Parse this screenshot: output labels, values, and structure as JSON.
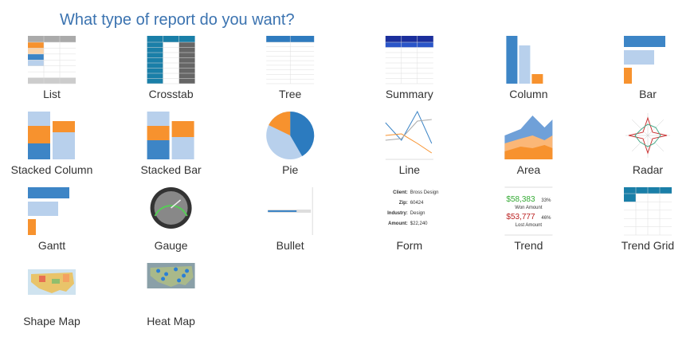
{
  "title": "What type of report do you want?",
  "items": [
    {
      "label": "List"
    },
    {
      "label": "Crosstab"
    },
    {
      "label": "Tree"
    },
    {
      "label": "Summary"
    },
    {
      "label": "Column"
    },
    {
      "label": "Bar"
    },
    {
      "label": "Stacked Column"
    },
    {
      "label": "Stacked Bar"
    },
    {
      "label": "Pie"
    },
    {
      "label": "Line"
    },
    {
      "label": "Area"
    },
    {
      "label": "Radar"
    },
    {
      "label": "Gantt"
    },
    {
      "label": "Gauge"
    },
    {
      "label": "Bullet"
    },
    {
      "label": "Form",
      "fields": [
        {
          "label": "Client:",
          "value": "Bross Design"
        },
        {
          "label": "Zip:",
          "value": "60424"
        },
        {
          "label": "Industry:",
          "value": "Design"
        },
        {
          "label": "Amount:",
          "value": "$22,240"
        }
      ]
    },
    {
      "label": "Trend",
      "won": "$58,383",
      "won_pct": "33%",
      "won_label": "Won Amount",
      "lost": "$53,777",
      "lost_pct": "46%",
      "lost_label": "Lost Amount"
    },
    {
      "label": "Trend Grid"
    },
    {
      "label": "Shape Map"
    },
    {
      "label": "Heat Map"
    }
  ]
}
